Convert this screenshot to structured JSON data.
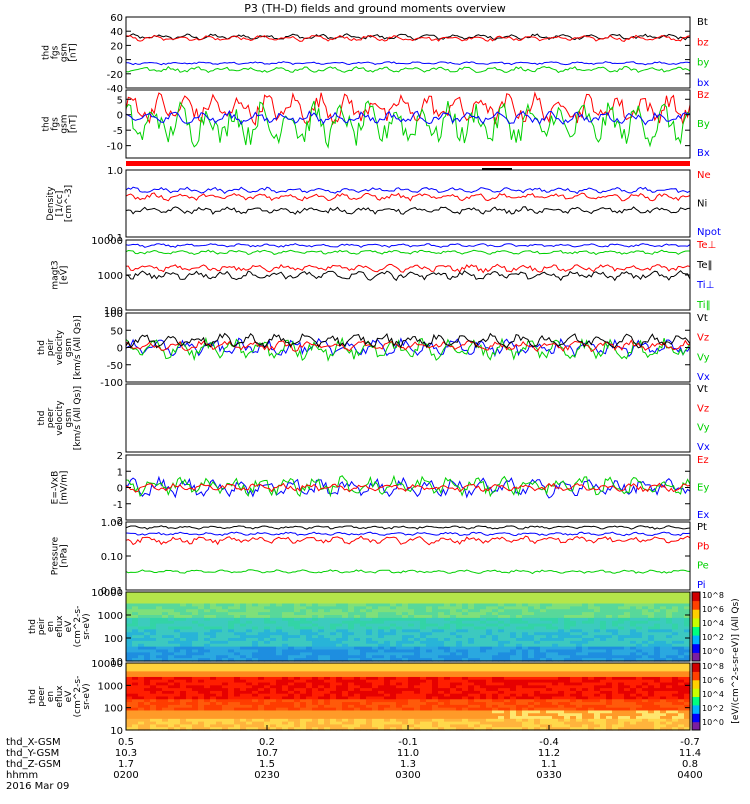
{
  "title": "P3 (TH-D) fields and ground moments overview",
  "colors": {
    "black": "#000000",
    "red": "#ff0000",
    "green": "#00d000",
    "blue": "#0000ff"
  },
  "chart_data": [
    {
      "type": "line",
      "name": "fgs_gsm",
      "ylabel": [
        "thd",
        "fgs",
        "gsm",
        "[nT]"
      ],
      "ylim": [
        -40,
        60
      ],
      "ticks": [
        "60",
        "40",
        "20",
        "0",
        "-20",
        "-40"
      ],
      "tick_values": [
        60,
        40,
        20,
        0,
        -20,
        -40
      ],
      "legend": [
        {
          "label": "Bt",
          "color": "black"
        },
        {
          "label": "bz",
          "color": "red"
        },
        {
          "label": "by",
          "color": "green"
        },
        {
          "label": "bx",
          "color": "blue"
        }
      ],
      "series": [
        {
          "name": "Bt",
          "color": "black",
          "mean": 32,
          "amp": 4
        },
        {
          "name": "bz",
          "color": "red",
          "mean": 30,
          "amp": 4
        },
        {
          "name": "bx",
          "color": "blue",
          "mean": -5,
          "amp": 2
        },
        {
          "name": "by",
          "color": "green",
          "mean": -14,
          "amp": 4
        }
      ]
    },
    {
      "type": "line",
      "name": "fgs_dsl",
      "ylabel": [
        "thd",
        "fgs",
        "gsm",
        "[nT]"
      ],
      "ylim": [
        -14,
        8
      ],
      "ticks": [
        "5",
        "0",
        "-5",
        "-10"
      ],
      "tick_values": [
        5,
        0,
        -5,
        -10
      ],
      "legend": [
        {
          "label": "Bz",
          "color": "red"
        },
        {
          "label": "By",
          "color": "green"
        },
        {
          "label": "Bx",
          "color": "blue"
        }
      ],
      "series": [
        {
          "name": "Bz",
          "color": "red",
          "mean": 2,
          "amp": 5
        },
        {
          "name": "By",
          "color": "green",
          "mean": -3,
          "amp": 7
        },
        {
          "name": "Bx",
          "color": "blue",
          "mean": -1,
          "amp": 2
        }
      ]
    },
    {
      "type": "line",
      "name": "density",
      "ylabel": [
        "Density",
        "[1/cc]",
        "[cm^-3]"
      ],
      "ylim": [
        0.1,
        1.0
      ],
      "log": true,
      "ticks": [
        "1.0",
        "0.1"
      ],
      "tick_values": [
        1.0,
        0.1
      ],
      "legend": [
        {
          "label": "Ne",
          "color": "red"
        },
        {
          "label": "Ni",
          "color": "black"
        },
        {
          "label": "Npot",
          "color": "blue"
        }
      ],
      "series": [
        {
          "name": "Npot",
          "color": "blue",
          "mean": 0.5,
          "amp": 0.05
        },
        {
          "name": "Ne",
          "color": "red",
          "mean": 0.4,
          "amp": 0.05
        },
        {
          "name": "Ni",
          "color": "black",
          "mean": 0.25,
          "amp": 0.03
        }
      ]
    },
    {
      "type": "line",
      "name": "temperature",
      "ylabel": [
        "magt3",
        "[eV]"
      ],
      "ylim": [
        100,
        10000
      ],
      "log": true,
      "ticks": [
        "10000",
        "1000",
        "100"
      ],
      "tick_values": [
        10000,
        1000,
        100
      ],
      "legend": [
        {
          "label": "Te⊥",
          "color": "red"
        },
        {
          "label": "Te‖",
          "color": "black"
        },
        {
          "label": "Ti⊥",
          "color": "blue"
        },
        {
          "label": "Ti‖",
          "color": "green"
        }
      ],
      "series": [
        {
          "name": "Ti⊥",
          "color": "blue",
          "mean": 7000,
          "amp": 800
        },
        {
          "name": "Ti‖",
          "color": "green",
          "mean": 4500,
          "amp": 600
        },
        {
          "name": "Te⊥",
          "color": "red",
          "mean": 1600,
          "amp": 400
        },
        {
          "name": "Te‖",
          "color": "black",
          "mean": 1000,
          "amp": 300
        }
      ]
    },
    {
      "type": "line",
      "name": "pier_velocity",
      "ylabel": [
        "thd",
        "peir",
        "velocity",
        "gsm",
        "[km/s (All Qs)]"
      ],
      "ylim": [
        -100,
        100
      ],
      "ticks": [
        "100",
        "50",
        "0",
        "-50",
        "-100"
      ],
      "tick_values": [
        100,
        50,
        0,
        -50,
        -100
      ],
      "legend": [
        {
          "label": "Vt",
          "color": "black"
        },
        {
          "label": "Vz",
          "color": "red"
        },
        {
          "label": "Vy",
          "color": "green"
        },
        {
          "label": "Vx",
          "color": "blue"
        }
      ],
      "series": [
        {
          "name": "Vx",
          "color": "blue",
          "mean": 0,
          "amp": 25
        },
        {
          "name": "Vy",
          "color": "green",
          "mean": -5,
          "amp": 30
        },
        {
          "name": "Vz",
          "color": "red",
          "mean": 5,
          "amp": 15
        },
        {
          "name": "Vt",
          "color": "black",
          "mean": 20,
          "amp": 20
        }
      ]
    },
    {
      "type": "line",
      "name": "peer_velocity",
      "ylabel": [
        "thd",
        "peer",
        "velocity",
        "gsm",
        "[km/s (All Qs)]"
      ],
      "ylim": [
        -100,
        100
      ],
      "ticks": [],
      "tick_values": [],
      "legend": [
        {
          "label": "Vt",
          "color": "black"
        },
        {
          "label": "Vz",
          "color": "red"
        },
        {
          "label": "Vy",
          "color": "green"
        },
        {
          "label": "Vx",
          "color": "blue"
        }
      ],
      "series": []
    },
    {
      "type": "line",
      "name": "efield",
      "ylabel": [
        "E=-VxB",
        "[mV/m]"
      ],
      "ylim": [
        -2,
        2
      ],
      "ticks": [
        "2",
        "1",
        "0",
        "-1",
        "-2"
      ],
      "tick_values": [
        2,
        1,
        0,
        -1,
        -2
      ],
      "legend": [
        {
          "label": "Ez",
          "color": "red"
        },
        {
          "label": "Ey",
          "color": "green"
        },
        {
          "label": "Ex",
          "color": "blue"
        }
      ],
      "series": [
        {
          "name": "Ex",
          "color": "blue",
          "mean": 0,
          "amp": 0.6
        },
        {
          "name": "Ey",
          "color": "green",
          "mean": 0.1,
          "amp": 0.6
        },
        {
          "name": "Ez",
          "color": "red",
          "mean": 0,
          "amp": 0.25
        }
      ]
    },
    {
      "type": "line",
      "name": "pressure",
      "ylabel": [
        "Pressure",
        "[nPa]"
      ],
      "ylim": [
        0.01,
        1.0
      ],
      "log": true,
      "ticks": [
        "1.00",
        "0.10",
        "0.01"
      ],
      "tick_values": [
        1.0,
        0.1,
        0.01
      ],
      "legend": [
        {
          "label": "Pt",
          "color": "black"
        },
        {
          "label": "Pb",
          "color": "red"
        },
        {
          "label": "Pe",
          "color": "green"
        },
        {
          "label": "Pi",
          "color": "blue"
        }
      ],
      "series": [
        {
          "name": "Pt",
          "color": "black",
          "mean": 0.7,
          "amp": 0.08
        },
        {
          "name": "Pi",
          "color": "blue",
          "mean": 0.45,
          "amp": 0.05
        },
        {
          "name": "Pb",
          "color": "red",
          "mean": 0.3,
          "amp": 0.08
        },
        {
          "name": "Pe",
          "color": "green",
          "mean": 0.035,
          "amp": 0.004
        }
      ]
    },
    {
      "type": "heatmap",
      "name": "peir_flux",
      "ylabel": [
        "thd",
        "peir",
        "en",
        "eflux",
        "eV",
        "(cm^2-s-",
        "sr-eV)"
      ],
      "ylim": [
        10,
        10000
      ],
      "log": true,
      "ticks": [
        "10000",
        "1000",
        "100",
        "10"
      ],
      "tick_values": [
        10000,
        1000,
        100,
        10
      ],
      "cmap": "ions"
    },
    {
      "type": "heatmap",
      "name": "peer_flux",
      "ylabel": [
        "thd",
        "peer",
        "en",
        "eflux",
        "eV",
        "(cm^2-s-",
        "sr-eV)"
      ],
      "ylim": [
        10,
        10000
      ],
      "log": true,
      "ticks": [
        "10000",
        "1000",
        "100",
        "10"
      ],
      "tick_values": [
        10000,
        1000,
        100,
        10
      ],
      "cmap": "electrons"
    }
  ],
  "colorbar": {
    "label": "[eV/(cm^2-s-sr-eV)] (All Qs)",
    "ticks_top": [
      "10^8",
      "10^6",
      "10^4",
      "10^2",
      "10^0"
    ],
    "ticks_bot": [
      "10^8",
      "10^6",
      "10^4",
      "10^2",
      "10^0"
    ]
  },
  "xaxis": {
    "rows": [
      {
        "label": "thd_X-GSM",
        "values": [
          "0.5",
          "0.2",
          "-0.1",
          "-0.4",
          "-0.7"
        ]
      },
      {
        "label": "thd_Y-GSM",
        "values": [
          "10.3",
          "10.7",
          "11.0",
          "11.2",
          "11.4"
        ]
      },
      {
        "label": "thd_Z-GSM",
        "values": [
          "1.7",
          "1.5",
          "1.3",
          "1.1",
          "0.8"
        ]
      },
      {
        "label": "hhmm",
        "values": [
          "0200",
          "0230",
          "0300",
          "0330",
          "0400"
        ]
      }
    ],
    "date": "2016 Mar 09"
  }
}
